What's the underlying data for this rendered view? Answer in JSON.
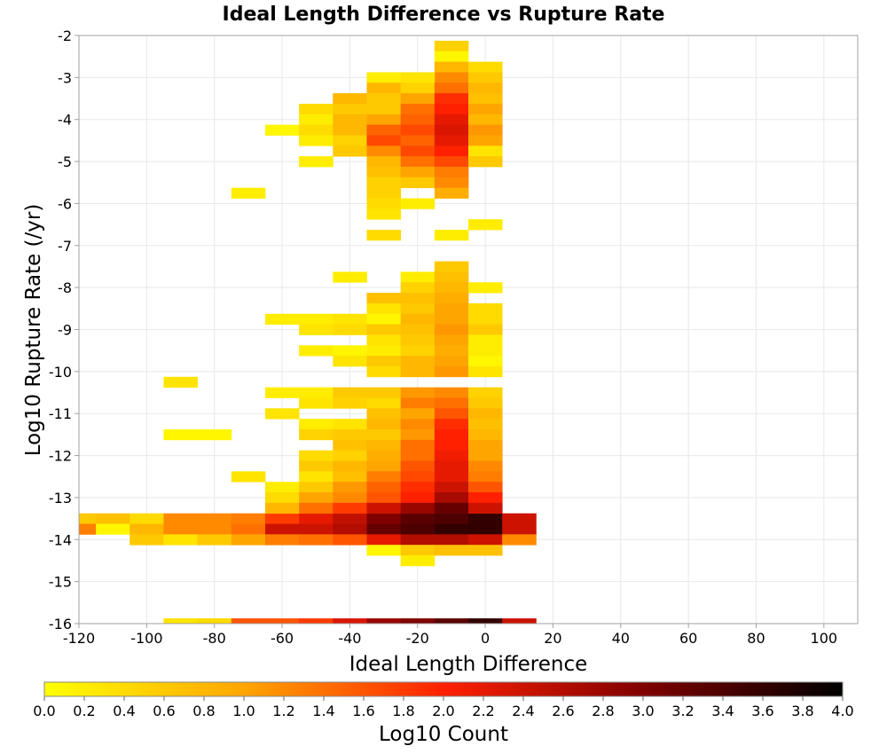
{
  "chart_data": {
    "type": "heatmap",
    "title": "Ideal Length Difference vs Rupture Rate",
    "xlabel": "Ideal Length Difference",
    "ylabel": "Log10 Rupture Rate (/yr)",
    "xlim": [
      -120,
      110
    ],
    "ylim": [
      -16,
      -2
    ],
    "x_ticks": [
      "-120",
      "-100",
      "-80",
      "-60",
      "-40",
      "-20",
      "0",
      "20",
      "40",
      "60",
      "80",
      "100"
    ],
    "y_ticks": [
      "-2",
      "-3",
      "-4",
      "-5",
      "-6",
      "-7",
      "-8",
      "-9",
      "-10",
      "-11",
      "-12",
      "-13",
      "-14",
      "-15",
      "-16"
    ],
    "grid": true,
    "colorbar": {
      "label": "Log10 Count",
      "range": [
        0,
        4
      ],
      "placement": "bottom",
      "ticks": [
        "0.0",
        "0.2",
        "0.4",
        "0.6",
        "0.8",
        "1.0",
        "1.2",
        "1.4",
        "1.6",
        "1.8",
        "2.0",
        "2.2",
        "2.4",
        "2.6",
        "2.8",
        "3.0",
        "3.2",
        "3.4",
        "3.6",
        "3.8",
        "4.0"
      ],
      "colors": [
        "#ffff00",
        "#ffa500",
        "#ff2000",
        "#800000",
        "#000000"
      ]
    },
    "cell_width": 10,
    "cell_height": 0.25,
    "cells": [
      [
        -120,
        -13.5,
        0.6
      ],
      [
        -110,
        -13.5,
        0.7
      ],
      [
        -100,
        -13.5,
        0.4
      ],
      [
        -90,
        -13.5,
        1.2
      ],
      [
        -80,
        -13.5,
        1.2
      ],
      [
        -70,
        -13.5,
        1.3
      ],
      [
        -60,
        -13.5,
        1.8
      ],
      [
        -50,
        -13.5,
        2.2
      ],
      [
        -40,
        -13.5,
        2.5
      ],
      [
        -30,
        -13.5,
        3.0
      ],
      [
        -20,
        -13.5,
        3.3
      ],
      [
        -10,
        -13.5,
        3.4
      ],
      [
        0,
        -13.5,
        3.6
      ],
      [
        10,
        -13.5,
        2.4
      ],
      [
        -120,
        -13.75,
        1.3
      ],
      [
        -110,
        -13.75,
        0.1
      ],
      [
        -100,
        -13.75,
        0.8
      ],
      [
        -90,
        -13.75,
        1.2
      ],
      [
        -80,
        -13.75,
        1.2
      ],
      [
        -70,
        -13.75,
        1.4
      ],
      [
        -60,
        -13.75,
        2.4
      ],
      [
        -50,
        -13.75,
        2.4
      ],
      [
        -40,
        -13.75,
        2.6
      ],
      [
        -30,
        -13.75,
        3.2
      ],
      [
        -20,
        -13.75,
        3.4
      ],
      [
        -10,
        -13.75,
        3.6
      ],
      [
        0,
        -13.75,
        3.6
      ],
      [
        10,
        -13.75,
        2.4
      ],
      [
        -100,
        -14.0,
        0.6
      ],
      [
        -90,
        -14.0,
        0.3
      ],
      [
        -80,
        -14.0,
        0.6
      ],
      [
        -70,
        -14.0,
        1.0
      ],
      [
        -60,
        -14.0,
        1.3
      ],
      [
        -50,
        -14.0,
        1.4
      ],
      [
        -40,
        -14.0,
        1.6
      ],
      [
        -30,
        -14.0,
        2.2
      ],
      [
        -20,
        -14.0,
        2.6
      ],
      [
        -10,
        -14.0,
        2.6
      ],
      [
        0,
        -14.0,
        2.4
      ],
      [
        10,
        -14.0,
        1.2
      ],
      [
        -30,
        -14.25,
        0.1
      ],
      [
        -20,
        -14.25,
        0.6
      ],
      [
        -10,
        -14.25,
        0.7
      ],
      [
        0,
        -14.25,
        0.7
      ],
      [
        -20,
        -14.5,
        0.2
      ],
      [
        -90,
        -16.0,
        0.3
      ],
      [
        -80,
        -16.0,
        0.4
      ],
      [
        -70,
        -16.0,
        1.6
      ],
      [
        -60,
        -16.0,
        1.6
      ],
      [
        -50,
        -16.0,
        1.8
      ],
      [
        -40,
        -16.0,
        2.3
      ],
      [
        -30,
        -16.0,
        2.8
      ],
      [
        -20,
        -16.0,
        3.0
      ],
      [
        -10,
        -16.0,
        3.3
      ],
      [
        0,
        -16.0,
        3.6
      ],
      [
        10,
        -16.0,
        2.4
      ],
      [
        -10,
        -2.25,
        0.5
      ],
      [
        -10,
        -2.5,
        0.1
      ],
      [
        -10,
        -2.75,
        0.8
      ],
      [
        0,
        -2.75,
        0.4
      ],
      [
        -10,
        -3.0,
        1.2
      ],
      [
        0,
        -3.0,
        0.6
      ],
      [
        -30,
        -3.0,
        0.2
      ],
      [
        -20,
        -3.0,
        0.3
      ],
      [
        -30,
        -3.25,
        0.8
      ],
      [
        -20,
        -3.25,
        0.5
      ],
      [
        -10,
        -3.25,
        1.4
      ],
      [
        0,
        -3.25,
        0.8
      ],
      [
        -40,
        -3.5,
        0.8
      ],
      [
        -30,
        -3.5,
        0.6
      ],
      [
        -20,
        -3.5,
        1.0
      ],
      [
        -10,
        -3.5,
        1.9
      ],
      [
        0,
        -3.5,
        0.7
      ],
      [
        -50,
        -3.75,
        0.4
      ],
      [
        -40,
        -3.75,
        0.6
      ],
      [
        -30,
        -3.75,
        0.6
      ],
      [
        -20,
        -3.75,
        1.4
      ],
      [
        -10,
        -3.75,
        2.0
      ],
      [
        0,
        -3.75,
        1.0
      ],
      [
        -50,
        -4.0,
        0.2
      ],
      [
        -40,
        -4.0,
        0.8
      ],
      [
        -30,
        -4.0,
        1.0
      ],
      [
        -20,
        -4.0,
        1.5
      ],
      [
        -10,
        -4.0,
        2.2
      ],
      [
        0,
        -4.0,
        0.8
      ],
      [
        -60,
        -4.25,
        0.1
      ],
      [
        -50,
        -4.25,
        0.4
      ],
      [
        -40,
        -4.25,
        0.8
      ],
      [
        -30,
        -4.25,
        1.5
      ],
      [
        -20,
        -4.25,
        1.7
      ],
      [
        -10,
        -4.25,
        2.3
      ],
      [
        0,
        -4.25,
        1.1
      ],
      [
        -50,
        -4.5,
        0.2
      ],
      [
        -40,
        -4.5,
        0.5
      ],
      [
        -30,
        -4.5,
        1.7
      ],
      [
        -20,
        -4.5,
        1.5
      ],
      [
        -10,
        -4.5,
        2.2
      ],
      [
        0,
        -4.5,
        1.0
      ],
      [
        -40,
        -4.75,
        0.6
      ],
      [
        -30,
        -4.75,
        1.2
      ],
      [
        -20,
        -4.75,
        1.7
      ],
      [
        -10,
        -4.75,
        2.0
      ],
      [
        0,
        -4.75,
        0.3
      ],
      [
        -50,
        -5.0,
        0.2
      ],
      [
        -30,
        -5.0,
        0.8
      ],
      [
        -20,
        -5.0,
        1.4
      ],
      [
        -10,
        -5.0,
        1.7
      ],
      [
        0,
        -5.0,
        0.6
      ],
      [
        -30,
        -5.25,
        0.7
      ],
      [
        -20,
        -5.25,
        1.0
      ],
      [
        -10,
        -5.25,
        1.3
      ],
      [
        -30,
        -5.5,
        0.5
      ],
      [
        -20,
        -5.5,
        0.6
      ],
      [
        -10,
        -5.5,
        1.2
      ],
      [
        -70,
        -5.75,
        0.2
      ],
      [
        -30,
        -5.75,
        0.5
      ],
      [
        -10,
        -5.75,
        0.9
      ],
      [
        -30,
        -6.0,
        0.4
      ],
      [
        -20,
        -6.0,
        0.2
      ],
      [
        -30,
        -6.25,
        0.3
      ],
      [
        0,
        -6.5,
        0.2
      ],
      [
        -30,
        -6.75,
        0.4
      ],
      [
        -10,
        -6.75,
        0.2
      ],
      [
        -40,
        -7.75,
        0.2
      ],
      [
        -20,
        -7.75,
        0.2
      ],
      [
        -10,
        -7.5,
        0.6
      ],
      [
        -10,
        -7.75,
        0.7
      ],
      [
        -20,
        -8.0,
        0.5
      ],
      [
        -10,
        -8.0,
        0.8
      ],
      [
        0,
        -8.0,
        0.2
      ],
      [
        -30,
        -8.25,
        0.7
      ],
      [
        -20,
        -8.25,
        0.7
      ],
      [
        -10,
        -8.25,
        0.9
      ],
      [
        -30,
        -8.5,
        0.3
      ],
      [
        -20,
        -8.5,
        0.6
      ],
      [
        -10,
        -8.5,
        1.0
      ],
      [
        0,
        -8.5,
        0.4
      ],
      [
        -60,
        -8.75,
        0.2
      ],
      [
        -50,
        -8.75,
        0.2
      ],
      [
        -40,
        -8.75,
        0.3
      ],
      [
        -30,
        -8.75,
        0.1
      ],
      [
        -20,
        -8.75,
        0.8
      ],
      [
        -10,
        -8.75,
        1.0
      ],
      [
        0,
        -8.75,
        0.4
      ],
      [
        -50,
        -9.0,
        0.3
      ],
      [
        -40,
        -9.0,
        0.4
      ],
      [
        -30,
        -9.0,
        0.6
      ],
      [
        -20,
        -9.0,
        0.7
      ],
      [
        -10,
        -9.0,
        1.1
      ],
      [
        0,
        -9.0,
        0.6
      ],
      [
        -30,
        -9.25,
        0.3
      ],
      [
        -20,
        -9.25,
        0.6
      ],
      [
        -10,
        -9.25,
        1.0
      ],
      [
        0,
        -9.25,
        0.2
      ],
      [
        -50,
        -9.5,
        0.2
      ],
      [
        -40,
        -9.5,
        0.1
      ],
      [
        -30,
        -9.5,
        0.2
      ],
      [
        -20,
        -9.5,
        0.5
      ],
      [
        -10,
        -9.5,
        0.9
      ],
      [
        0,
        -9.5,
        0.2
      ],
      [
        -40,
        -9.75,
        0.3
      ],
      [
        -30,
        -9.75,
        0.6
      ],
      [
        -20,
        -9.75,
        0.8
      ],
      [
        -10,
        -9.75,
        1.0
      ],
      [
        0,
        -9.75,
        0.1
      ],
      [
        -90,
        -10.25,
        0.3
      ],
      [
        -30,
        -10.0,
        0.4
      ],
      [
        -20,
        -10.0,
        0.8
      ],
      [
        -10,
        -10.0,
        1.1
      ],
      [
        0,
        -10.0,
        0.3
      ],
      [
        -60,
        -10.5,
        0.2
      ],
      [
        -50,
        -10.5,
        0.2
      ],
      [
        -40,
        -10.5,
        0.6
      ],
      [
        -30,
        -10.5,
        0.6
      ],
      [
        -20,
        -10.5,
        1.1
      ],
      [
        -10,
        -10.5,
        1.2
      ],
      [
        0,
        -10.5,
        0.5
      ],
      [
        -50,
        -10.75,
        0.3
      ],
      [
        -40,
        -10.75,
        0.5
      ],
      [
        -30,
        -10.75,
        0.4
      ],
      [
        -20,
        -10.75,
        1.3
      ],
      [
        -10,
        -10.75,
        1.4
      ],
      [
        0,
        -10.75,
        0.6
      ],
      [
        -60,
        -11.0,
        0.3
      ],
      [
        -30,
        -11.0,
        0.7
      ],
      [
        -20,
        -11.0,
        1.0
      ],
      [
        -10,
        -11.0,
        1.6
      ],
      [
        0,
        -11.0,
        0.8
      ],
      [
        -90,
        -11.5,
        0.1
      ],
      [
        -80,
        -11.5,
        0.1
      ],
      [
        -50,
        -11.25,
        0.2
      ],
      [
        -40,
        -11.25,
        0.3
      ],
      [
        -30,
        -11.25,
        0.8
      ],
      [
        -20,
        -11.25,
        1.2
      ],
      [
        -10,
        -11.25,
        1.9
      ],
      [
        0,
        -11.25,
        0.7
      ],
      [
        -50,
        -11.5,
        0.5
      ],
      [
        -40,
        -11.5,
        0.6
      ],
      [
        -30,
        -11.5,
        0.6
      ],
      [
        -20,
        -11.5,
        1.1
      ],
      [
        -10,
        -11.5,
        2.0
      ],
      [
        0,
        -11.5,
        0.8
      ],
      [
        -40,
        -11.75,
        0.7
      ],
      [
        -30,
        -11.75,
        0.8
      ],
      [
        -20,
        -11.75,
        1.4
      ],
      [
        -10,
        -11.75,
        2.0
      ],
      [
        0,
        -11.75,
        1.0
      ],
      [
        -70,
        -12.5,
        0.3
      ],
      [
        -50,
        -12.0,
        0.4
      ],
      [
        -40,
        -12.0,
        0.5
      ],
      [
        -30,
        -12.0,
        0.9
      ],
      [
        -20,
        -12.0,
        1.4
      ],
      [
        -10,
        -12.0,
        2.1
      ],
      [
        0,
        -12.0,
        1.0
      ],
      [
        -50,
        -12.25,
        0.6
      ],
      [
        -40,
        -12.25,
        0.8
      ],
      [
        -30,
        -12.25,
        1.0
      ],
      [
        -20,
        -12.25,
        1.6
      ],
      [
        -10,
        -12.25,
        2.2
      ],
      [
        0,
        -12.25,
        1.2
      ],
      [
        -60,
        -12.75,
        0.2
      ],
      [
        -50,
        -12.5,
        0.3
      ],
      [
        -40,
        -12.5,
        0.7
      ],
      [
        -30,
        -12.5,
        1.3
      ],
      [
        -20,
        -12.5,
        1.7
      ],
      [
        -10,
        -12.5,
        2.2
      ],
      [
        0,
        -12.5,
        1.3
      ],
      [
        -50,
        -12.75,
        0.6
      ],
      [
        -40,
        -12.75,
        1.1
      ],
      [
        -30,
        -12.75,
        1.5
      ],
      [
        -20,
        -12.75,
        1.9
      ],
      [
        -10,
        -12.75,
        2.4
      ],
      [
        0,
        -12.75,
        1.6
      ],
      [
        -60,
        -13.0,
        0.4
      ],
      [
        -50,
        -13.0,
        1.0
      ],
      [
        -40,
        -13.0,
        1.2
      ],
      [
        -30,
        -13.0,
        1.6
      ],
      [
        -20,
        -13.0,
        2.0
      ],
      [
        -10,
        -13.0,
        2.7
      ],
      [
        0,
        -13.0,
        2.0
      ],
      [
        -60,
        -13.25,
        0.8
      ],
      [
        -50,
        -13.25,
        1.4
      ],
      [
        -40,
        -13.25,
        1.8
      ],
      [
        -30,
        -13.25,
        2.4
      ],
      [
        -20,
        -13.25,
        2.8
      ],
      [
        -10,
        -13.25,
        3.2
      ],
      [
        0,
        -13.25,
        2.4
      ]
    ]
  }
}
